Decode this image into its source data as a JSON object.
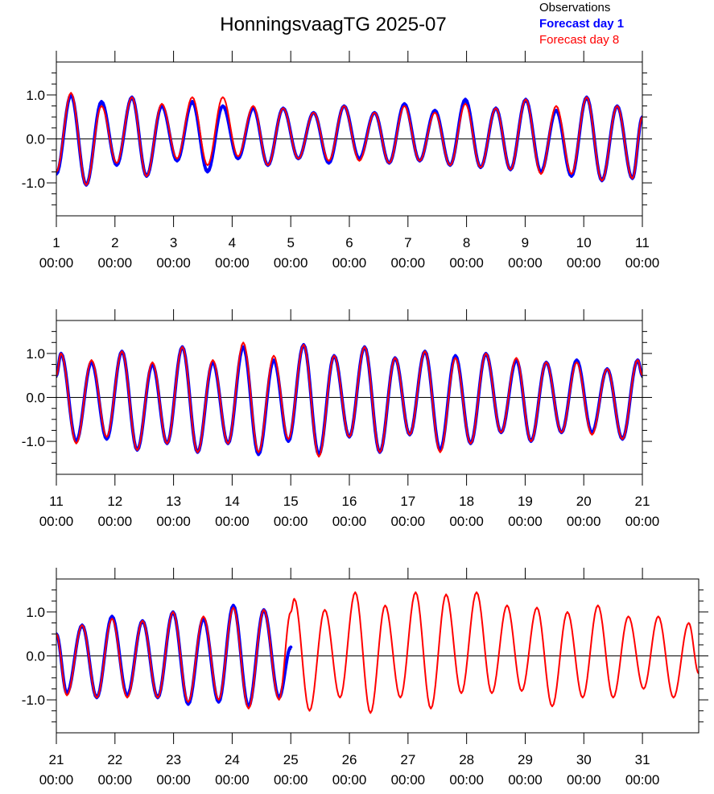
{
  "chart_data": [
    {
      "type": "line",
      "title": "HonningsvaagTG 2025-07",
      "legend": "top-right",
      "xlim": [
        1,
        11
      ],
      "xticks": [
        {
          "value": 1,
          "label": [
            "1",
            "00:00"
          ]
        },
        {
          "value": 2,
          "label": [
            "2",
            "00:00"
          ]
        },
        {
          "value": 3,
          "label": [
            "3",
            "00:00"
          ]
        },
        {
          "value": 4,
          "label": [
            "4",
            "00:00"
          ]
        },
        {
          "value": 5,
          "label": [
            "5",
            "00:00"
          ]
        },
        {
          "value": 6,
          "label": [
            "6",
            "00:00"
          ]
        },
        {
          "value": 7,
          "label": [
            "7",
            "00:00"
          ]
        },
        {
          "value": 8,
          "label": [
            "8",
            "00:00"
          ]
        },
        {
          "value": 9,
          "label": [
            "9",
            "00:00"
          ]
        },
        {
          "value": 10,
          "label": [
            "10",
            "00:00"
          ]
        },
        {
          "value": 11,
          "label": [
            "11",
            "00:00"
          ]
        }
      ],
      "ylim": [
        -1.75,
        1.75
      ],
      "yticks": [
        {
          "value": -1,
          "label": "-1.0"
        },
        {
          "value": 0,
          "label": "0.0"
        },
        {
          "value": 1,
          "label": "1.0"
        }
      ],
      "yminorticks": [
        -1.5,
        -1.25,
        -0.75,
        -0.5,
        -0.25,
        0.25,
        0.5,
        0.75,
        1.25,
        1.5
      ],
      "hline": 0,
      "x": [
        1.0,
        1.25,
        1.51,
        1.77,
        2.03,
        2.29,
        2.54,
        2.8,
        3.06,
        3.32,
        3.58,
        3.84,
        4.1,
        4.36,
        4.61,
        4.87,
        5.13,
        5.39,
        5.65,
        5.91,
        6.17,
        6.43,
        6.68,
        6.94,
        7.2,
        7.46,
        7.72,
        7.98,
        8.24,
        8.5,
        8.75,
        9.01,
        9.27,
        9.53,
        9.79,
        10.05,
        10.31,
        10.57,
        10.83,
        11.0
      ],
      "series": [
        {
          "name": "Observations",
          "color": "#000000",
          "values": [
            -0.8,
            0.95,
            -1.0,
            0.8,
            -0.6,
            0.9,
            -0.8,
            0.75,
            -0.5,
            0.8,
            -0.7,
            0.75,
            -0.45,
            0.7,
            -0.6,
            0.7,
            -0.45,
            0.6,
            -0.5,
            0.75,
            -0.45,
            0.6,
            -0.55,
            0.75,
            -0.5,
            0.65,
            -0.6,
            0.85,
            -0.65,
            0.7,
            -0.7,
            0.85,
            -0.8,
            0.65,
            -0.85,
            0.9,
            -0.9,
            0.75,
            -0.9,
            0.5
          ]
        },
        {
          "name": "Forecast day 1",
          "color": "#0000ff",
          "values": [
            -0.8,
            1.0,
            -1.05,
            0.85,
            -0.6,
            0.95,
            -0.85,
            0.75,
            -0.5,
            0.85,
            -0.75,
            0.75,
            -0.45,
            0.7,
            -0.6,
            0.7,
            -0.45,
            0.6,
            -0.55,
            0.75,
            -0.45,
            0.6,
            -0.55,
            0.8,
            -0.5,
            0.65,
            -0.6,
            0.9,
            -0.65,
            0.7,
            -0.7,
            0.9,
            -0.75,
            0.65,
            -0.85,
            0.95,
            -0.95,
            0.75,
            -0.9,
            0.5
          ]
        },
        {
          "name": "Forecast day 8",
          "color": "#ff0000",
          "values": [
            -0.75,
            1.05,
            -1.05,
            0.75,
            -0.55,
            0.95,
            -0.85,
            0.8,
            -0.45,
            0.95,
            -0.6,
            0.95,
            -0.4,
            0.75,
            -0.6,
            0.7,
            -0.45,
            0.6,
            -0.5,
            0.75,
            -0.5,
            0.6,
            -0.55,
            0.75,
            -0.5,
            0.6,
            -0.6,
            0.8,
            -0.65,
            0.7,
            -0.7,
            0.9,
            -0.8,
            0.75,
            -0.8,
            0.95,
            -0.95,
            0.75,
            -0.9,
            0.5
          ]
        }
      ]
    },
    {
      "type": "line",
      "xlim": [
        11,
        21
      ],
      "xticks": [
        {
          "value": 11,
          "label": [
            "11",
            "00:00"
          ]
        },
        {
          "value": 12,
          "label": [
            "12",
            "00:00"
          ]
        },
        {
          "value": 13,
          "label": [
            "13",
            "00:00"
          ]
        },
        {
          "value": 14,
          "label": [
            "14",
            "00:00"
          ]
        },
        {
          "value": 15,
          "label": [
            "15",
            "00:00"
          ]
        },
        {
          "value": 16,
          "label": [
            "16",
            "00:00"
          ]
        },
        {
          "value": 17,
          "label": [
            "17",
            "00:00"
          ]
        },
        {
          "value": 18,
          "label": [
            "18",
            "00:00"
          ]
        },
        {
          "value": 19,
          "label": [
            "19",
            "00:00"
          ]
        },
        {
          "value": 20,
          "label": [
            "20",
            "00:00"
          ]
        },
        {
          "value": 21,
          "label": [
            "21",
            "00:00"
          ]
        }
      ],
      "ylim": [
        -1.75,
        1.75
      ],
      "yticks": [
        {
          "value": -1,
          "label": "-1.0"
        },
        {
          "value": 0,
          "label": "0.0"
        },
        {
          "value": 1,
          "label": "1.0"
        }
      ],
      "yminorticks": [
        -1.5,
        -1.25,
        -0.75,
        -0.5,
        -0.25,
        0.25,
        0.5,
        0.75,
        1.25,
        1.5
      ],
      "hline": 0,
      "x": [
        11.0,
        11.08,
        11.34,
        11.6,
        11.86,
        12.12,
        12.38,
        12.64,
        12.89,
        13.15,
        13.41,
        13.67,
        13.93,
        14.19,
        14.45,
        14.71,
        14.96,
        15.22,
        15.48,
        15.74,
        16.0,
        16.26,
        16.52,
        16.78,
        17.03,
        17.29,
        17.55,
        17.81,
        18.07,
        18.33,
        18.59,
        18.85,
        19.1,
        19.36,
        19.62,
        19.88,
        20.14,
        20.4,
        20.66,
        20.92,
        21.0
      ],
      "series": [
        {
          "color": "#000000",
          "values": [
            0.45,
            0.95,
            -1.0,
            0.8,
            -0.9,
            1.0,
            -1.15,
            0.75,
            -1.0,
            1.1,
            -1.2,
            0.8,
            -1.0,
            1.1,
            -1.25,
            0.85,
            -0.95,
            1.15,
            -1.25,
            0.9,
            -0.9,
            1.1,
            -1.2,
            0.85,
            -0.85,
            1.0,
            -1.15,
            0.9,
            -1.0,
            0.95,
            -0.8,
            0.85,
            -0.95,
            0.8,
            -0.8,
            0.8,
            -0.8,
            0.65,
            -0.9,
            0.8,
            0.45
          ]
        },
        {
          "color": "#0000ff",
          "values": [
            0.5,
            1.0,
            -1.0,
            0.8,
            -0.95,
            1.05,
            -1.2,
            0.75,
            -1.05,
            1.15,
            -1.25,
            0.8,
            -1.05,
            1.15,
            -1.3,
            0.85,
            -1.0,
            1.2,
            -1.3,
            0.95,
            -0.9,
            1.15,
            -1.25,
            0.9,
            -0.85,
            1.05,
            -1.2,
            0.95,
            -1.05,
            1.0,
            -0.8,
            0.85,
            -1.0,
            0.8,
            -0.8,
            0.85,
            -0.8,
            0.65,
            -0.95,
            0.85,
            0.5
          ]
        },
        {
          "color": "#ff0000",
          "values": [
            0.5,
            1.0,
            -1.05,
            0.85,
            -0.9,
            1.05,
            -1.2,
            0.8,
            -1.05,
            1.15,
            -1.25,
            0.85,
            -1.05,
            1.25,
            -1.25,
            0.95,
            -0.95,
            1.2,
            -1.35,
            0.95,
            -0.9,
            1.15,
            -1.25,
            0.9,
            -0.85,
            1.05,
            -1.25,
            0.9,
            -1.05,
            1.0,
            -0.8,
            0.9,
            -1.0,
            0.8,
            -0.8,
            0.8,
            -0.85,
            0.65,
            -0.95,
            0.85,
            0.5
          ]
        }
      ]
    },
    {
      "type": "line",
      "xlim": [
        21,
        31.96
      ],
      "xticks": [
        {
          "value": 21,
          "label": [
            "21",
            "00:00"
          ]
        },
        {
          "value": 22,
          "label": [
            "22",
            "00:00"
          ]
        },
        {
          "value": 23,
          "label": [
            "23",
            "00:00"
          ]
        },
        {
          "value": 24,
          "label": [
            "24",
            "00:00"
          ]
        },
        {
          "value": 25,
          "label": [
            "25",
            "00:00"
          ]
        },
        {
          "value": 26,
          "label": [
            "26",
            "00:00"
          ]
        },
        {
          "value": 27,
          "label": [
            "27",
            "00:00"
          ]
        },
        {
          "value": 28,
          "label": [
            "28",
            "00:00"
          ]
        },
        {
          "value": 29,
          "label": [
            "29",
            "00:00"
          ]
        },
        {
          "value": 30,
          "label": [
            "30",
            "00:00"
          ]
        },
        {
          "value": 31,
          "label": [
            "31",
            "00:00"
          ]
        }
      ],
      "ylim": [
        -1.75,
        1.75
      ],
      "yticks": [
        {
          "value": -1,
          "label": "-1.0"
        },
        {
          "value": 0,
          "label": "0.0"
        },
        {
          "value": 1,
          "label": "1.0"
        }
      ],
      "yminorticks": [
        -1.5,
        -1.25,
        -0.75,
        -0.5,
        -0.25,
        0.25,
        0.5,
        0.75,
        1.25,
        1.5
      ],
      "hline": 0,
      "x": [
        21.0,
        21.18,
        21.44,
        21.69,
        21.95,
        22.21,
        22.47,
        22.73,
        22.99,
        23.25,
        23.51,
        23.77,
        24.02,
        24.28,
        24.54,
        24.8,
        25.0,
        25.06,
        25.32,
        25.58,
        25.84,
        26.1,
        26.36,
        26.61,
        26.87,
        27.13,
        27.39,
        27.65,
        27.91,
        28.17,
        28.43,
        28.69,
        28.94,
        29.2,
        29.46,
        29.72,
        29.98,
        30.24,
        30.5,
        30.76,
        31.02,
        31.27,
        31.53,
        31.79,
        31.96
      ],
      "series": [
        {
          "color": "#000000",
          "values": [
            0.45,
            -0.85,
            0.65,
            -0.9,
            0.85,
            -0.9,
            0.75,
            -0.9,
            0.95,
            -1.05,
            0.8,
            -1.0,
            1.1,
            -1.1,
            1.0,
            -0.9,
            0.15,
            null,
            null,
            null,
            null,
            null,
            null,
            null,
            null,
            null,
            null,
            null,
            null,
            null,
            null,
            null,
            null,
            null,
            null,
            null,
            null,
            null,
            null,
            null,
            null,
            null,
            null,
            null,
            null
          ]
        },
        {
          "color": "#0000ff",
          "values": [
            0.5,
            -0.85,
            0.7,
            -0.95,
            0.9,
            -0.9,
            0.8,
            -0.95,
            1.0,
            -1.1,
            0.85,
            -1.05,
            1.15,
            -1.15,
            1.05,
            -0.95,
            0.2,
            null,
            null,
            null,
            null,
            null,
            null,
            null,
            null,
            null,
            null,
            null,
            null,
            null,
            null,
            null,
            null,
            null,
            null,
            null,
            null,
            null,
            null,
            null,
            null,
            null,
            null,
            null,
            null
          ]
        },
        {
          "color": "#ff0000",
          "values": [
            0.5,
            -0.9,
            0.7,
            -0.95,
            0.85,
            -0.95,
            0.8,
            -0.95,
            1.0,
            -1.05,
            0.9,
            -1.0,
            1.1,
            -1.2,
            1.05,
            -1.0,
            1.0,
            1.3,
            -1.25,
            1.05,
            -0.95,
            1.45,
            -1.3,
            1.15,
            -0.95,
            1.45,
            -1.2,
            1.4,
            -0.85,
            1.45,
            -0.85,
            1.15,
            -0.8,
            1.1,
            -1.15,
            1.0,
            -0.95,
            1.15,
            -0.95,
            0.9,
            -0.75,
            0.9,
            -0.95,
            0.75,
            -0.4
          ]
        }
      ]
    }
  ]
}
